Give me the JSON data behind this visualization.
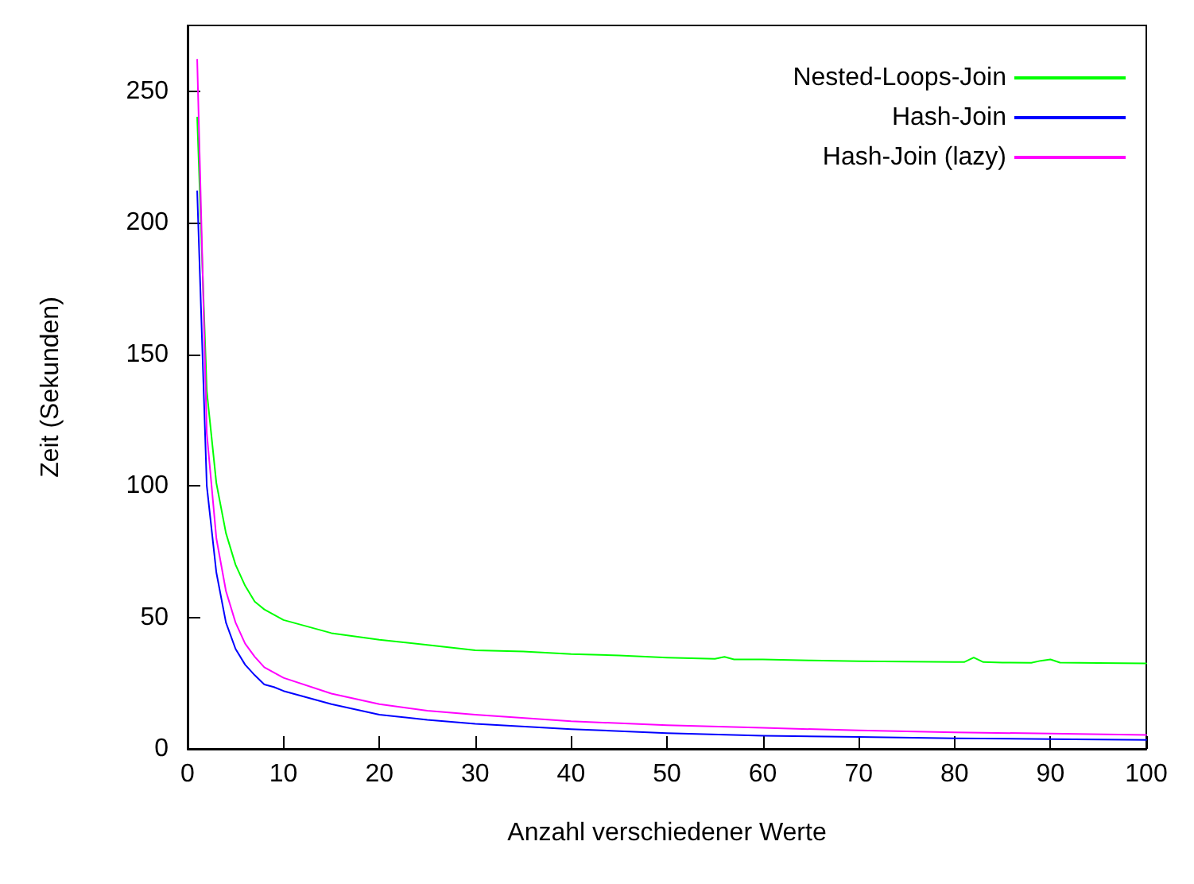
{
  "chart_data": {
    "type": "line",
    "xlabel": "Anzahl verschiedener Werte",
    "ylabel": "Zeit (Sekunden)",
    "xlim": [
      0,
      100
    ],
    "xticks": [
      0,
      10,
      20,
      30,
      40,
      50,
      60,
      70,
      80,
      90,
      100
    ],
    "ylim": [
      0,
      275
    ],
    "yticks": [
      0,
      50,
      100,
      150,
      200,
      250
    ],
    "grid": false,
    "legend": "top right",
    "marker": "none",
    "line_style": "solid",
    "series": [
      {
        "name": "Nested-Loops-Join",
        "color": "#00ff00",
        "x": [
          1,
          2,
          3,
          4,
          5,
          6,
          7,
          8,
          10,
          15,
          20,
          25,
          30,
          35,
          40,
          45,
          50,
          55,
          56,
          57,
          60,
          65,
          70,
          75,
          80,
          81,
          82,
          83,
          85,
          88,
          89,
          90,
          91,
          95,
          100
        ],
        "values": [
          240,
          136,
          101,
          82,
          70,
          62,
          56,
          53,
          49,
          44,
          41.5,
          39.5,
          37.5,
          37,
          36,
          35.5,
          34.7,
          34.2,
          35,
          34,
          34,
          33.6,
          33.3,
          33.2,
          33,
          33,
          34.7,
          33,
          32.8,
          32.7,
          33.5,
          34,
          32.8,
          32.6,
          32.5
        ]
      },
      {
        "name": "Hash-Join",
        "color": "#0000ff",
        "x": [
          1,
          2,
          3,
          4,
          5,
          6,
          7,
          8,
          9,
          10,
          15,
          20,
          25,
          30,
          40,
          50,
          60,
          70,
          80,
          90,
          100
        ],
        "values": [
          212,
          100,
          67,
          48,
          38,
          32,
          28,
          24.5,
          23.5,
          22,
          17,
          13,
          11,
          9.5,
          7.5,
          6,
          5,
          4.5,
          4,
          3.7,
          3.4
        ]
      },
      {
        "name": "Hash-Join (lazy)",
        "color": "#ff00ff",
        "x": [
          1,
          2,
          3,
          4,
          5,
          6,
          7,
          8,
          10,
          15,
          20,
          25,
          30,
          40,
          50,
          60,
          70,
          80,
          90,
          100
        ],
        "values": [
          262,
          120,
          80,
          60,
          48,
          40,
          35,
          31,
          27,
          21,
          17,
          14.5,
          13,
          10.5,
          9,
          8,
          7,
          6.3,
          5.8,
          5.3
        ]
      }
    ]
  }
}
